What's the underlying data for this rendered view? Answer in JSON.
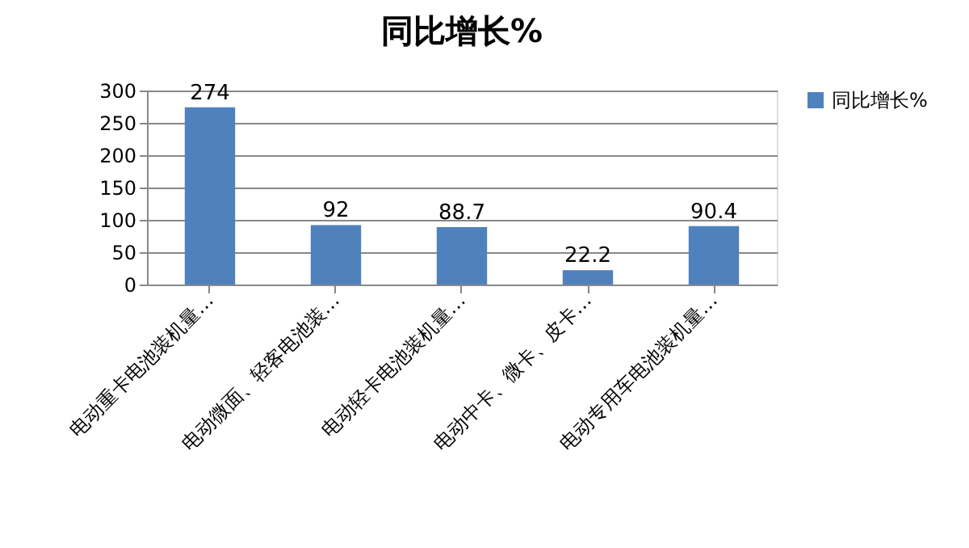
{
  "chart_data": {
    "type": "bar",
    "title": "同比增长%",
    "categories": [
      "电动重卡电池装机量…",
      "电动微面、轻客电池装…",
      "电动轻卡电池装机量…",
      "电动中卡、微卡、皮卡…",
      "电动专用车电池装机量…"
    ],
    "series": [
      {
        "name": "同比增长%",
        "color": "#4f81bd",
        "values": [
          274,
          92,
          88.7,
          22.2,
          90.4
        ]
      }
    ],
    "ylim": [
      0,
      300
    ],
    "yticks": [
      0,
      50,
      100,
      150,
      200,
      250,
      300
    ],
    "grid": "y",
    "legend": "right",
    "data_labels": true
  }
}
